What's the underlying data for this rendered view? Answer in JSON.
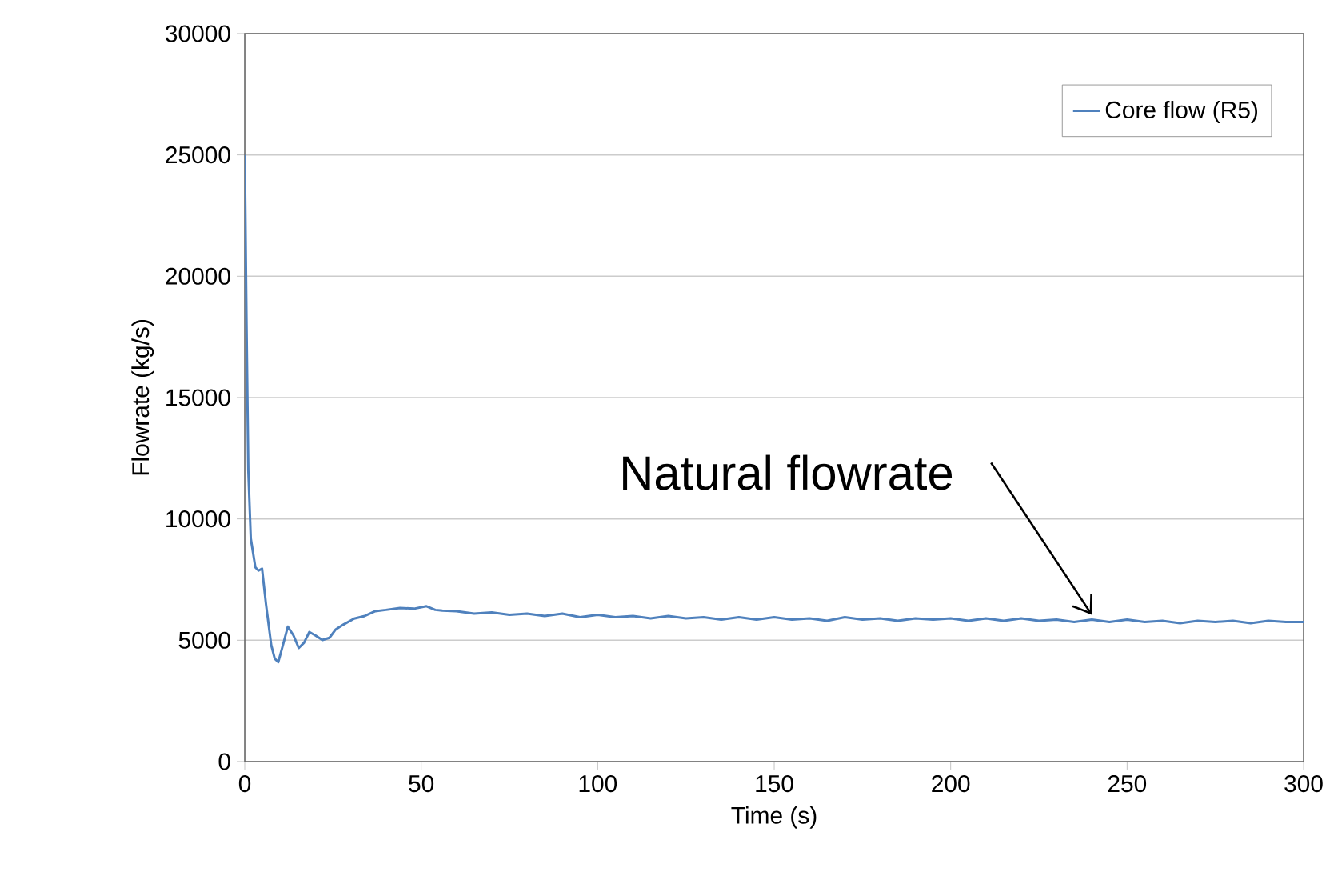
{
  "chart_data": {
    "type": "line",
    "xlabel": "Time (s)",
    "ylabel": "Flowrate (kg/s)",
    "xlim": [
      0,
      300
    ],
    "xticks": [
      0,
      50,
      100,
      150,
      200,
      250,
      300
    ],
    "ylim": [
      0,
      30000
    ],
    "yticks": [
      0,
      5000,
      10000,
      15000,
      20000,
      25000,
      30000
    ],
    "grid": "y",
    "legend": "top right",
    "marker": "none",
    "line_style": "solid",
    "series": [
      {
        "name": "Core flow (R5)",
        "color": "#4f81bd",
        "x": [
          0,
          0.5,
          1,
          1.7,
          3,
          3.9,
          4.9,
          6,
          7.5,
          8.5,
          9.5,
          11,
          12.2,
          13.8,
          15.3,
          16.8,
          18.3,
          20,
          22,
          24,
          25.8,
          28,
          31,
          34,
          37,
          40,
          44,
          48,
          51.5,
          54,
          56,
          60,
          65,
          70,
          75,
          80,
          85,
          90,
          95,
          100,
          105,
          110,
          115,
          120,
          125,
          130,
          135,
          140,
          145,
          150,
          155,
          160,
          165,
          170,
          175,
          180,
          185,
          190,
          195,
          200,
          205,
          210,
          215,
          220,
          225,
          230,
          235,
          240,
          245,
          250,
          255,
          260,
          265,
          270,
          275,
          280,
          285,
          290,
          295,
          300
        ],
        "values": [
          25000,
          18000,
          12000,
          9200,
          8000,
          7870,
          7950,
          6500,
          4800,
          4240,
          4100,
          4900,
          5560,
          5200,
          4680,
          4900,
          5340,
          5200,
          5010,
          5100,
          5450,
          5650,
          5890,
          6000,
          6200,
          6250,
          6330,
          6300,
          6400,
          6250,
          6220,
          6200,
          6100,
          6150,
          6050,
          6100,
          6000,
          6100,
          5950,
          6050,
          5950,
          6000,
          5900,
          6000,
          5900,
          5950,
          5850,
          5950,
          5850,
          5950,
          5850,
          5900,
          5800,
          5950,
          5850,
          5900,
          5800,
          5900,
          5850,
          5900,
          5800,
          5900,
          5800,
          5900,
          5800,
          5850,
          5750,
          5850,
          5750,
          5850,
          5750,
          5800,
          5700,
          5800,
          5750,
          5800,
          5700,
          5800,
          5750,
          5750
        ]
      }
    ],
    "annotations": [
      {
        "text": "Natural flowrate",
        "x": 240,
        "y": 5850
      }
    ]
  }
}
